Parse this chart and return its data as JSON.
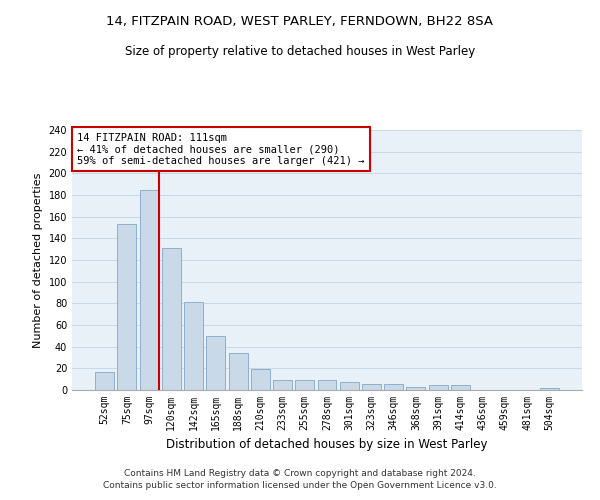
{
  "title1": "14, FITZPAIN ROAD, WEST PARLEY, FERNDOWN, BH22 8SA",
  "title2": "Size of property relative to detached houses in West Parley",
  "xlabel": "Distribution of detached houses by size in West Parley",
  "ylabel": "Number of detached properties",
  "bar_labels": [
    "52sqm",
    "75sqm",
    "97sqm",
    "120sqm",
    "142sqm",
    "165sqm",
    "188sqm",
    "210sqm",
    "233sqm",
    "255sqm",
    "278sqm",
    "301sqm",
    "323sqm",
    "346sqm",
    "368sqm",
    "391sqm",
    "414sqm",
    "436sqm",
    "459sqm",
    "481sqm",
    "504sqm"
  ],
  "bar_values": [
    17,
    153,
    185,
    131,
    81,
    50,
    34,
    19,
    9,
    9,
    9,
    7,
    6,
    6,
    3,
    5,
    5,
    0,
    0,
    0,
    2
  ],
  "bar_color": "#c9d9e8",
  "bar_edgecolor": "#7fa8c9",
  "vline_color": "#cc0000",
  "annotation_text": "14 FITZPAIN ROAD: 111sqm\n← 41% of detached houses are smaller (290)\n59% of semi-detached houses are larger (421) →",
  "annotation_box_color": "#cc0000",
  "annotation_bg": "#ffffff",
  "ylim": [
    0,
    240
  ],
  "yticks": [
    0,
    20,
    40,
    60,
    80,
    100,
    120,
    140,
    160,
    180,
    200,
    220,
    240
  ],
  "grid_color": "#c8d8e8",
  "background_color": "#e8f0f8",
  "footer": "Contains HM Land Registry data © Crown copyright and database right 2024.\nContains public sector information licensed under the Open Government Licence v3.0.",
  "title1_fontsize": 9.5,
  "title2_fontsize": 8.5,
  "xlabel_fontsize": 8.5,
  "ylabel_fontsize": 8,
  "tick_fontsize": 7,
  "footer_fontsize": 6.5,
  "annot_fontsize": 7.5
}
